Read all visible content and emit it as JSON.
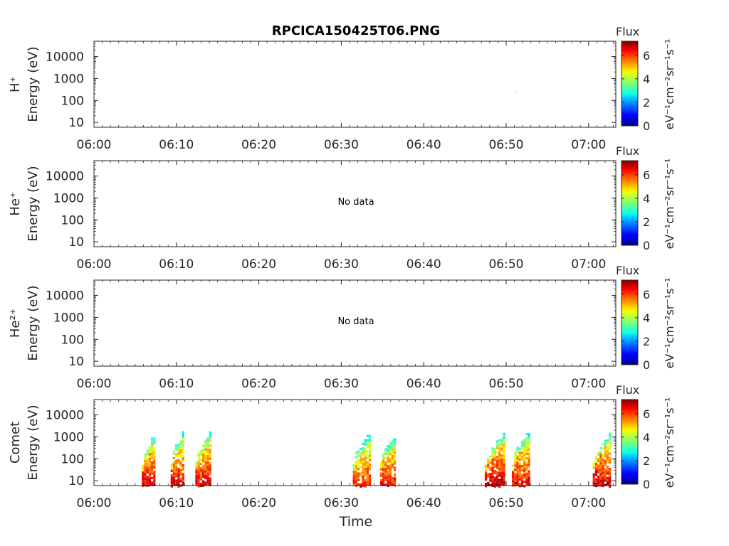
{
  "chart_data": {
    "type": "heatmap",
    "title": "RPCICA150425T06.PNG",
    "xlabel": "Time",
    "x_ticks": [
      "06:00",
      "06:10",
      "06:20",
      "06:30",
      "06:40",
      "06:50",
      "07:00"
    ],
    "y_scale": "log",
    "y_ticks": [
      "10",
      "100",
      "1000",
      "10000"
    ],
    "ylim": [
      6,
      50000
    ],
    "colorbar": {
      "title": "Flux",
      "label": "eV⁻¹cm⁻²sr⁻¹s⁻¹",
      "ticks": [
        "0",
        "2",
        "4",
        "6"
      ],
      "range": [
        0,
        7.2
      ],
      "colormap": "jet"
    },
    "panels": [
      {
        "species_label": "H⁺",
        "ylabel": "Energy (eV)",
        "status": "",
        "blobs": [
          {
            "t0": 51.2,
            "t1": 51.4,
            "e_lo": 240,
            "e_hi": 255,
            "peak": 3.8
          }
        ]
      },
      {
        "species_label": "He⁺",
        "ylabel": "Energy (eV)",
        "status": "No data",
        "blobs": []
      },
      {
        "species_label": "He²⁺",
        "ylabel": "Energy (eV)",
        "status": "No data",
        "blobs": []
      },
      {
        "species_label": "Comet",
        "ylabel": "Energy (eV)",
        "status": "",
        "blobs": [
          {
            "t0": 5.8,
            "t1": 7.4,
            "e_lo": 6,
            "e_hi": 1800,
            "peak": 6.8
          },
          {
            "t0": 9.3,
            "t1": 10.9,
            "e_lo": 6,
            "e_hi": 2500,
            "peak": 6.5
          },
          {
            "t0": 12.3,
            "t1": 14.1,
            "e_lo": 6,
            "e_hi": 2500,
            "peak": 6.6
          },
          {
            "t0": 31.4,
            "t1": 33.5,
            "e_lo": 6,
            "e_hi": 2000,
            "peak": 6.2
          },
          {
            "t0": 34.7,
            "t1": 36.6,
            "e_lo": 6,
            "e_hi": 1800,
            "peak": 6.4
          },
          {
            "t0": 47.4,
            "t1": 49.8,
            "e_lo": 6,
            "e_hi": 1800,
            "peak": 6.9
          },
          {
            "t0": 50.7,
            "t1": 52.8,
            "e_lo": 6,
            "e_hi": 2500,
            "peak": 6.5
          },
          {
            "t0": 60.5,
            "t1": 62.6,
            "e_lo": 6,
            "e_hi": 2000,
            "peak": 6.8
          }
        ]
      }
    ]
  }
}
